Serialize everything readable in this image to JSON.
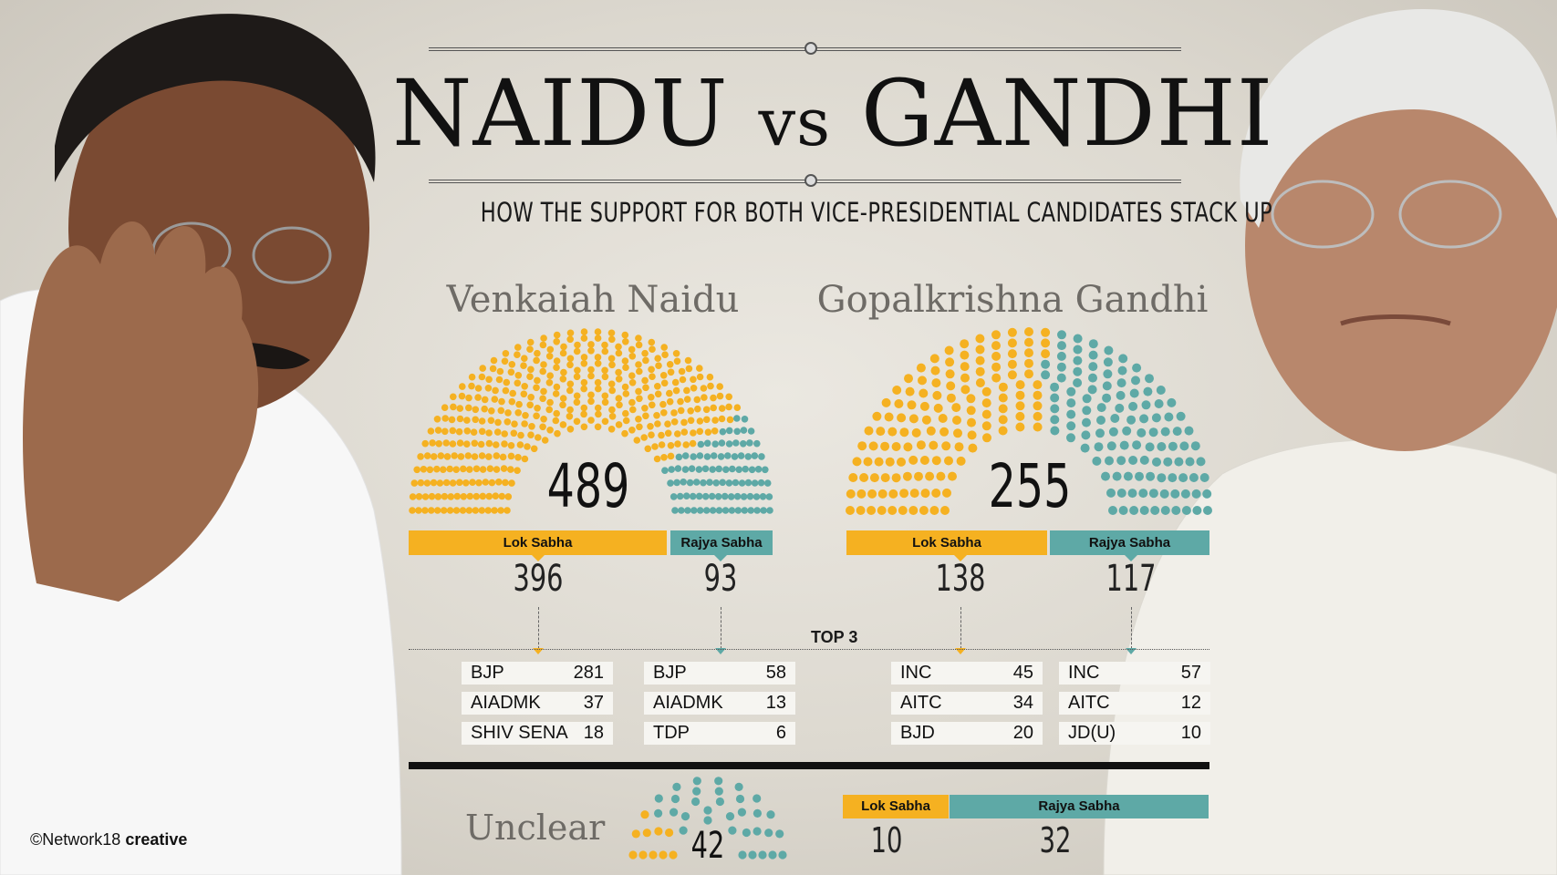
{
  "title": {
    "left": "NAIDU",
    "vs": "vs",
    "right": "GANDHI"
  },
  "subtitle": "HOW THE SUPPORT FOR BOTH VICE-PRESIDENTIAL CANDIDATES STACK UP",
  "colors": {
    "lok_sabha": "#f5b121",
    "rajya_sabha": "#5ea9a6",
    "background": "#e3e0d8",
    "divider": "#111111"
  },
  "top3_label": "TOP 3",
  "credit": {
    "prefix": "©Network18",
    "suffix": "creative"
  },
  "photos": {
    "left": "Venkaiah Naidu waving",
    "right": "Gopalkrishna Gandhi portrait"
  },
  "chart_data": [
    {
      "type": "parliament",
      "title": "Venkaiah Naidu",
      "total": 489,
      "series": [
        {
          "name": "Lok Sabha",
          "value": 396,
          "color": "#f5b121"
        },
        {
          "name": "Rajya Sabha",
          "value": 93,
          "color": "#5ea9a6"
        }
      ],
      "top3": {
        "lok_sabha": [
          {
            "party": "BJP",
            "seats": 281
          },
          {
            "party": "AIADMK",
            "seats": 37
          },
          {
            "party": "SHIV SENA",
            "seats": 18
          }
        ],
        "rajya_sabha": [
          {
            "party": "BJP",
            "seats": 58
          },
          {
            "party": "AIADMK",
            "seats": 13
          },
          {
            "party": "TDP",
            "seats": 6
          }
        ]
      }
    },
    {
      "type": "parliament",
      "title": "Gopalkrishna Gandhi",
      "total": 255,
      "series": [
        {
          "name": "Lok Sabha",
          "value": 138,
          "color": "#f5b121"
        },
        {
          "name": "Rajya Sabha",
          "value": 117,
          "color": "#5ea9a6"
        }
      ],
      "top3": {
        "lok_sabha": [
          {
            "party": "INC",
            "seats": 45
          },
          {
            "party": "AITC",
            "seats": 34
          },
          {
            "party": "BJD",
            "seats": 20
          }
        ],
        "rajya_sabha": [
          {
            "party": "INC",
            "seats": 57
          },
          {
            "party": "AITC",
            "seats": 12
          },
          {
            "party": "JD(U)",
            "seats": 10
          }
        ]
      }
    },
    {
      "type": "parliament",
      "title": "Unclear",
      "total": 42,
      "series": [
        {
          "name": "Lok Sabha",
          "value": 10,
          "color": "#f5b121"
        },
        {
          "name": "Rajya Sabha",
          "value": 32,
          "color": "#5ea9a6"
        }
      ]
    }
  ]
}
